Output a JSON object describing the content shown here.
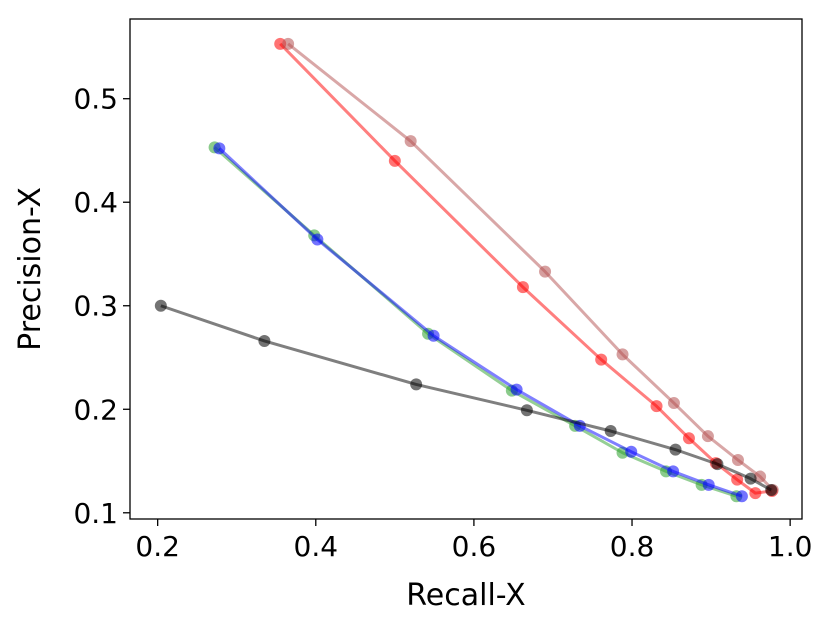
{
  "chart_data": {
    "type": "line",
    "title": "",
    "xlabel": "Recall-X",
    "ylabel": "Precision-X",
    "xlim": [
      0.165,
      1.015
    ],
    "ylim": [
      0.094,
      0.577
    ],
    "xticks": [
      0.2,
      0.4,
      0.6,
      0.8,
      1.0
    ],
    "xtick_labels": [
      "0.2",
      "0.4",
      "0.6",
      "0.8",
      "1.0"
    ],
    "yticks": [
      0.1,
      0.2,
      0.3,
      0.4,
      0.5
    ],
    "ytick_labels": [
      "0.1",
      "0.2",
      "0.3",
      "0.4",
      "0.5"
    ],
    "grid": false,
    "legend": "none",
    "series": [
      {
        "color": "#2ca02c",
        "x": [
          0.272,
          0.398,
          0.542,
          0.648,
          0.728,
          0.788,
          0.843,
          0.888,
          0.932
        ],
        "y": [
          0.453,
          0.368,
          0.273,
          0.218,
          0.184,
          0.158,
          0.14,
          0.127,
          0.116
        ]
      },
      {
        "color": "#0000ff",
        "x": [
          0.278,
          0.402,
          0.549,
          0.654,
          0.734,
          0.799,
          0.852,
          0.897,
          0.939
        ],
        "y": [
          0.452,
          0.364,
          0.271,
          0.219,
          0.184,
          0.159,
          0.14,
          0.127,
          0.116
        ]
      },
      {
        "color": "#ff0000",
        "x": [
          0.355,
          0.5,
          0.662,
          0.761,
          0.831,
          0.872,
          0.906,
          0.933,
          0.956,
          0.977
        ],
        "y": [
          0.553,
          0.44,
          0.318,
          0.248,
          0.203,
          0.172,
          0.148,
          0.132,
          0.119,
          0.121
        ]
      },
      {
        "color": "#b45050",
        "x": [
          0.365,
          0.52,
          0.69,
          0.788,
          0.853,
          0.896,
          0.934,
          0.962,
          0.978
        ],
        "y": [
          0.553,
          0.459,
          0.333,
          0.253,
          0.206,
          0.174,
          0.151,
          0.135,
          0.122
        ]
      },
      {
        "color": "#000000",
        "x": [
          0.204,
          0.335,
          0.527,
          0.667,
          0.773,
          0.855,
          0.908,
          0.95,
          0.976
        ],
        "y": [
          0.3,
          0.266,
          0.224,
          0.199,
          0.179,
          0.161,
          0.147,
          0.133,
          0.122
        ]
      }
    ]
  }
}
